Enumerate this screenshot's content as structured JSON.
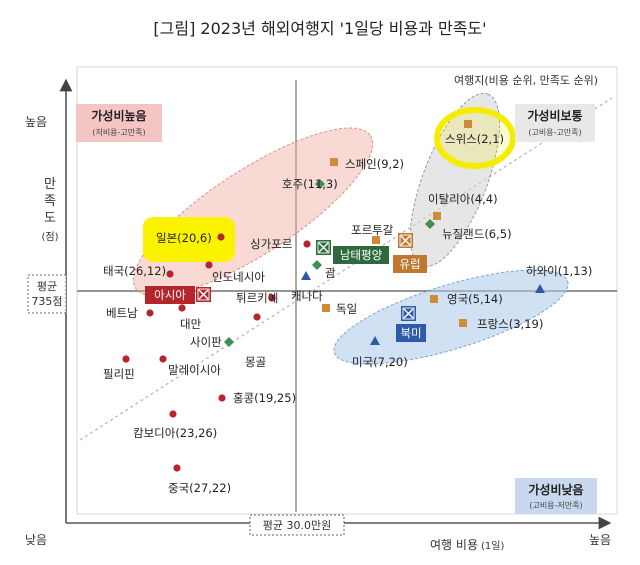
{
  "chart_data": {
    "type": "scatter",
    "title": "[그림] 2023년 해외여행지 '1일당 비용과 만족도'",
    "subtitle": "여행지(비용 순위, 만족도 순위)",
    "xlabel": "여행 비용",
    "xlabel_unit": "(1일)",
    "ylabel_chars": [
      "만",
      "족",
      "도"
    ],
    "ylabel_unit": "(점)",
    "x_axis_ends": {
      "low": "낮음",
      "high": "높음"
    },
    "y_axis_ends": {
      "high": "높음"
    },
    "reference_lines": {
      "x_avg_label": "평균 30.0만원",
      "y_avg_label_line1": "평균",
      "y_avg_label_line2": "735점"
    },
    "quadrants": {
      "good_value": {
        "title": "가성비높음",
        "sub": "(저비용-고만족)"
      },
      "normal_value": {
        "title": "가성비보통",
        "sub": "(고비용-고만족)"
      },
      "low_value": {
        "title": "가성비낮음",
        "sub": "(고비용-저만족)"
      }
    },
    "series": [
      {
        "name": "아시아",
        "marker": "circle",
        "color": "#b5262a"
      },
      {
        "name": "남태평양",
        "marker": "diamond",
        "color": "#3f8f55"
      },
      {
        "name": "유럽",
        "marker": "square",
        "color": "#d08b3a"
      },
      {
        "name": "북미",
        "marker": "triangle",
        "color": "#2d5ba8"
      }
    ],
    "points": [
      {
        "label": "일본(20,6)",
        "series": "아시아",
        "cost_rank": 20,
        "sat_rank": 6
      },
      {
        "label": "싱가포르",
        "series": "아시아"
      },
      {
        "label": "태국(26,12)",
        "series": "아시아",
        "cost_rank": 26,
        "sat_rank": 12
      },
      {
        "label": "인도네시아",
        "series": "아시아"
      },
      {
        "label": "베트남",
        "series": "아시아"
      },
      {
        "label": "대만",
        "series": "아시아"
      },
      {
        "label": "튀르키예",
        "series": "아시아"
      },
      {
        "label": "몽골",
        "series": "아시아"
      },
      {
        "label": "필리핀",
        "series": "아시아"
      },
      {
        "label": "말레이시아",
        "series": "아시아"
      },
      {
        "label": "홍콩(19,25)",
        "series": "아시아",
        "cost_rank": 19,
        "sat_rank": 25
      },
      {
        "label": "캄보디아(23,26)",
        "series": "아시아",
        "cost_rank": 23,
        "sat_rank": 26
      },
      {
        "label": "중국(27,22)",
        "series": "아시아",
        "cost_rank": 27,
        "sat_rank": 22
      },
      {
        "label": "호주(11,3)",
        "series": "남태평양",
        "cost_rank": 11,
        "sat_rank": 3
      },
      {
        "label": "뉴질랜드(6,5)",
        "series": "남태평양",
        "cost_rank": 6,
        "sat_rank": 5
      },
      {
        "label": "괌",
        "series": "남태평양"
      },
      {
        "label": "사이판",
        "series": "남태평양"
      },
      {
        "label": "스페인(9,2)",
        "series": "유럽",
        "cost_rank": 9,
        "sat_rank": 2
      },
      {
        "label": "스위스(2,1)",
        "series": "유럽",
        "cost_rank": 2,
        "sat_rank": 1
      },
      {
        "label": "이탈리아(4,4)",
        "series": "유럽",
        "cost_rank": 4,
        "sat_rank": 4
      },
      {
        "label": "포르투갈",
        "series": "유럽"
      },
      {
        "label": "영국(5,14)",
        "series": "유럽",
        "cost_rank": 5,
        "sat_rank": 14
      },
      {
        "label": "프랑스(3,19)",
        "series": "유럽",
        "cost_rank": 3,
        "sat_rank": 19
      },
      {
        "label": "독일",
        "series": "유럽"
      },
      {
        "label": "하와이(1,13)",
        "series": "북미",
        "cost_rank": 1,
        "sat_rank": 13
      },
      {
        "label": "미국(7,20)",
        "series": "북미",
        "cost_rank": 7,
        "sat_rank": 20
      },
      {
        "label": "캐나다",
        "series": "북미"
      }
    ],
    "group_tags": [
      "아시아",
      "남태평양",
      "유럽",
      "북미"
    ],
    "highlighted": [
      "스위스(2,1)",
      "일본(20,6)"
    ],
    "grid": false
  }
}
